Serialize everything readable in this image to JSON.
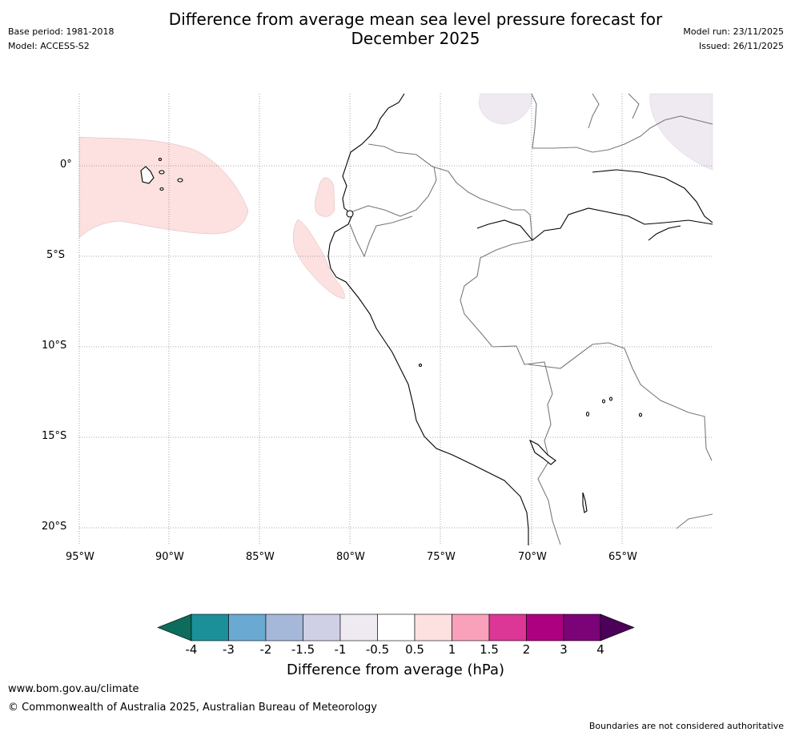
{
  "header": {
    "title_line1": "Difference from average mean sea level pressure forecast for",
    "title_line2": "December 2025",
    "base_period": "Base period: 1981-2018",
    "model": "Model: ACCESS-S2",
    "model_run": "Model run: 23/11/2025",
    "issued": "Issued: 26/11/2025"
  },
  "map": {
    "lat_labels": [
      "0°",
      "5°S",
      "10°S",
      "15°S",
      "20°S"
    ],
    "lon_labels": [
      "95°W",
      "90°W",
      "85°W",
      "80°W",
      "75°W",
      "70°W",
      "65°W"
    ],
    "anomaly_colors": {
      "positive_0_5_to_1": "#fde0e0",
      "negative_minus1_to_minus0_5": "#efeaf1"
    }
  },
  "colorbar": {
    "title": "Difference from average (hPa)",
    "labels": [
      "-4",
      "-3",
      "-2",
      "-1.5",
      "-1",
      "-0.5",
      "0.5",
      "1",
      "1.5",
      "2",
      "3",
      "4"
    ],
    "colors": {
      "below_min": "#0d6c5b",
      "bins": [
        "#1b9098",
        "#6aaad2",
        "#a6b8d9",
        "#cfd0e6",
        "#efeaf1",
        "#ffffff",
        "#fde0e0",
        "#f9a1bb",
        "#dc3697",
        "#ad0080",
        "#7c0277"
      ],
      "above_max": "#4b0158"
    }
  },
  "footer": {
    "website": "www.bom.gov.au/climate",
    "copyright": "© Commonwealth of Australia 2025, Australian Bureau of Meteorology",
    "disclaimer": "Boundaries are not considered authoritative"
  }
}
